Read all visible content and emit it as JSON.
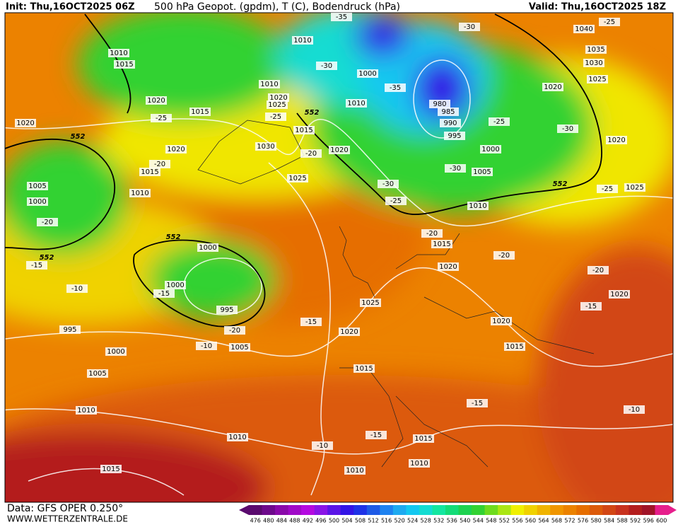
{
  "header": {
    "init": "Init: Thu,16OCT2025 06Z",
    "title": "500 hPa Geopot. (gpdm), T (C), Bodendruck (hPa)",
    "valid": "Valid: Thu,16OCT2025 18Z"
  },
  "footer": {
    "source": "Data: GFS OPER 0.250°",
    "website": "WWW.WETTERZENTRALE.DE"
  },
  "colorbar": {
    "labels": [
      476,
      480,
      484,
      488,
      492,
      496,
      500,
      504,
      508,
      512,
      516,
      520,
      524,
      528,
      532,
      536,
      540,
      544,
      548,
      552,
      556,
      560,
      564,
      568,
      572,
      576,
      580,
      584,
      588,
      592,
      596,
      600
    ],
    "colors": [
      "#5a0a6e",
      "#6e0a8c",
      "#8a0aaa",
      "#a00ac8",
      "#b40ae0",
      "#8a14e6",
      "#5a14e6",
      "#3214e6",
      "#1e32e6",
      "#1e5ae6",
      "#1e82f0",
      "#1eaaf0",
      "#14c8f0",
      "#14dcd2",
      "#14e6a0",
      "#14dc78",
      "#1ed250",
      "#32d232",
      "#6edc1e",
      "#aae614",
      "#f0f000",
      "#f0d200",
      "#f0b400",
      "#f09600",
      "#eb8200",
      "#e66e00",
      "#dc5a0a",
      "#d24614",
      "#c8321e",
      "#b41e1e",
      "#a01428",
      "#e61e8c"
    ]
  },
  "map": {
    "isobar_labels": [
      1010,
      1015,
      1010,
      1000,
      1010,
      1020,
      1025,
      1015,
      1020,
      1015,
      1030,
      1020,
      1020,
      1010,
      1020,
      1015,
      1010,
      1005,
      1000,
      1025,
      980,
      985,
      990,
      995,
      1000,
      1005,
      1010,
      1040,
      1035,
      1030,
      1025,
      1020,
      1020,
      1025,
      1015,
      1020,
      1000,
      1000,
      995,
      995,
      1000,
      1005,
      1025,
      1020,
      1005,
      1020,
      1015,
      1020,
      1015,
      1010,
      1010,
      1015,
      1010,
      1010,
      1015
    ],
    "temperature_labels": [
      -35,
      -30,
      -30,
      -35,
      -25,
      -25,
      -20,
      -20,
      -25,
      -30,
      -30,
      -30,
      -25,
      -20,
      -20,
      -25,
      -20,
      -15,
      -10,
      -15,
      -20,
      -10,
      -15,
      -20,
      -15,
      -25,
      -15,
      -10,
      -10,
      -15
    ],
    "geopotential_labels": [
      552,
      552,
      552,
      552,
      552
    ]
  }
}
